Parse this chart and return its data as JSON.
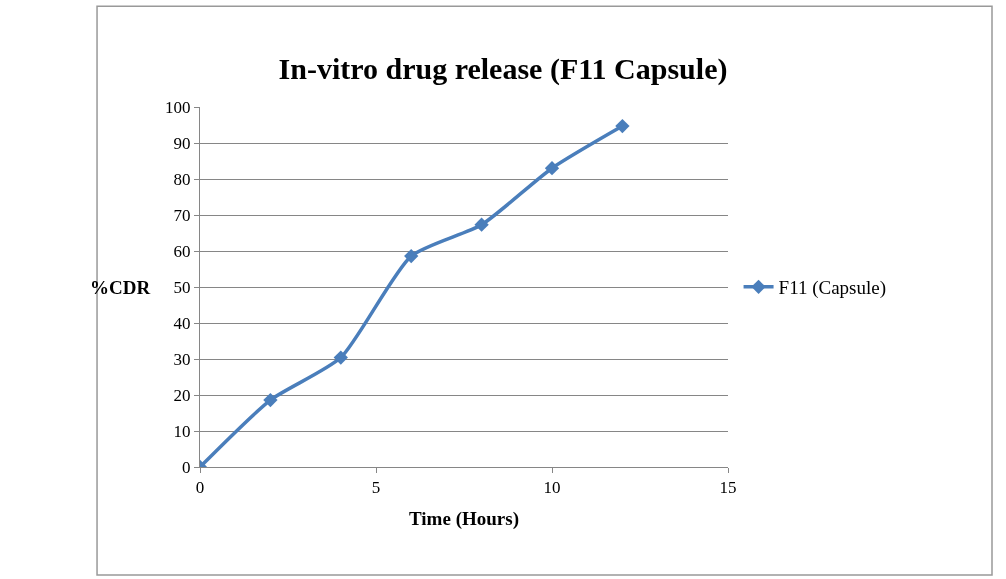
{
  "chart_data": {
    "type": "line",
    "title": "In-vitro drug release (F11 Capsule)",
    "xlabel": "Time (Hours)",
    "ylabel": "%CDR",
    "x": [
      0,
      2,
      4,
      6,
      8,
      10,
      12
    ],
    "series": [
      {
        "name": "F11 (Capsule)",
        "color": "#4a7ebb",
        "values": [
          0,
          18.6,
          30.4,
          58.6,
          67.3,
          83,
          94.7
        ]
      }
    ],
    "xlim": [
      0,
      15
    ],
    "xticks": [
      0,
      5,
      10,
      15
    ],
    "ylim": [
      0,
      100
    ],
    "yticks": [
      0,
      10,
      20,
      30,
      40,
      50,
      60,
      70,
      80,
      90,
      100
    ],
    "grid": "y",
    "legend": "right",
    "marker": "diamond",
    "line_style": "solid"
  }
}
